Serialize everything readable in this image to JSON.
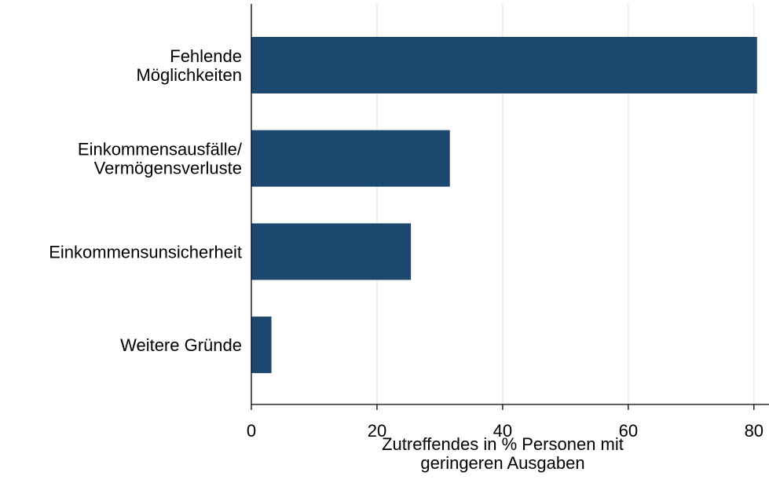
{
  "chart_data": {
    "type": "bar",
    "orientation": "horizontal",
    "categories": [
      "Fehlende\nMöglichkeiten",
      "Einkommensausfälle/\nVermögensverluste",
      "Einkommensunsicherheit",
      "Weitere Gründe"
    ],
    "values": [
      80.5,
      31.6,
      25.4,
      3.2
    ],
    "color": "#1c4870",
    "x_label": "Zutreffendes in % Personen mit\ngeringeren Ausgaben",
    "xlim": [
      0,
      82.4
    ],
    "xticks": [
      0,
      20,
      40,
      60,
      80
    ],
    "grid": true
  }
}
